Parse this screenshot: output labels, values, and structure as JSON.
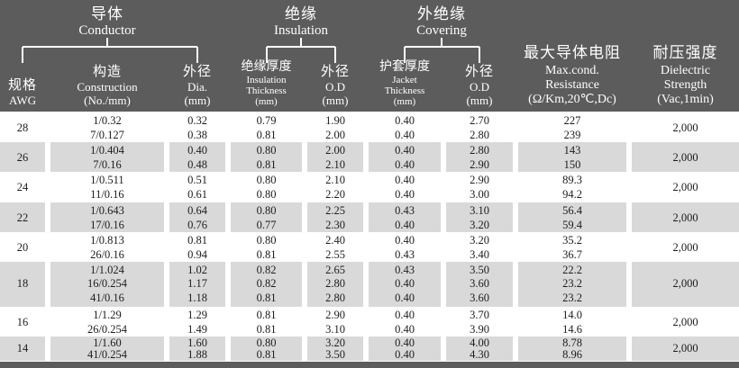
{
  "header": {
    "groups": [
      {
        "cjk": "导体",
        "en": "Conductor"
      },
      {
        "cjk": "绝缘",
        "en": "Insulation"
      },
      {
        "cjk": "外绝缘",
        "en": "Covering"
      }
    ],
    "columns": [
      {
        "key": "awg",
        "cjk": "规格",
        "lines": [
          "AWG"
        ],
        "size": ""
      },
      {
        "key": "construction",
        "cjk": "构造",
        "lines": [
          "Construction",
          "(No./mm)"
        ],
        "size": ""
      },
      {
        "key": "conductor-dia",
        "cjk": "外径",
        "lines": [
          "Dia.",
          "(mm)"
        ],
        "size": ""
      },
      {
        "key": "insulation-thickness",
        "cjk": "绝缘厚度",
        "lines": [
          "Insulation",
          "Thickness",
          "(mm)"
        ],
        "size": "small"
      },
      {
        "key": "insulation-od",
        "cjk": "外径",
        "lines": [
          "O.D",
          "(mm)"
        ],
        "size": ""
      },
      {
        "key": "jacket-thickness",
        "cjk": "护套厚度",
        "lines": [
          "Jacket",
          "Thickness",
          "(mm)"
        ],
        "size": "small"
      },
      {
        "key": "covering-od",
        "cjk": "外径",
        "lines": [
          "O.D",
          "(mm)"
        ],
        "size": ""
      },
      {
        "key": "max-resistance",
        "cjk": "最大导体电阻",
        "lines": [
          "Max.cond.",
          "Resistance",
          "(Ω/Km,20℃,Dc)"
        ],
        "size": "large"
      },
      {
        "key": "dielectric-strength",
        "cjk": "耐压强度",
        "lines": [
          "Dielectric",
          "Strength",
          "(Vac,1min)"
        ],
        "size": "large"
      }
    ]
  },
  "colors": {
    "header_bg": "#5c5c5c",
    "row_alt_bg": "#d9d9d9",
    "text": "#1c1c1c",
    "header_text": "#ffffff"
  },
  "rows": [
    {
      "cells": [
        [
          "28"
        ],
        [
          "1/0.32",
          "7/0.127"
        ],
        [
          "0.32",
          "0.38"
        ],
        [
          "0.79",
          "0.81"
        ],
        [
          "1.90",
          "2.00"
        ],
        [
          "0.40",
          "0.40"
        ],
        [
          "2.70",
          "2.80"
        ],
        [
          "227",
          "239"
        ],
        [
          "2,000"
        ]
      ]
    },
    {
      "cells": [
        [
          "26"
        ],
        [
          "1/0.404",
          "7/0.16"
        ],
        [
          "0.40",
          "0.48"
        ],
        [
          "0.80",
          "0.81"
        ],
        [
          "2.00",
          "2.10"
        ],
        [
          "0.40",
          "0.40"
        ],
        [
          "2.80",
          "2.90"
        ],
        [
          "143",
          "150"
        ],
        [
          "2,000"
        ]
      ]
    },
    {
      "cells": [
        [
          "24"
        ],
        [
          "1/0.511",
          "11/0.16"
        ],
        [
          "0.51",
          "0.61"
        ],
        [
          "0.80",
          "0.80"
        ],
        [
          "2.10",
          "2.20"
        ],
        [
          "0.40",
          "0.40"
        ],
        [
          "2.90",
          "3.00"
        ],
        [
          "89.3",
          "94.2"
        ],
        [
          "2,000"
        ]
      ]
    },
    {
      "cells": [
        [
          "22"
        ],
        [
          "1/0.643",
          "17/0.16"
        ],
        [
          "0.64",
          "0.76"
        ],
        [
          "0.80",
          "0.77"
        ],
        [
          "2.25",
          "2.30"
        ],
        [
          "0.43",
          "0.40"
        ],
        [
          "3.10",
          "3.20"
        ],
        [
          "56.4",
          "59.4"
        ],
        [
          "2,000"
        ]
      ]
    },
    {
      "cells": [
        [
          "20"
        ],
        [
          "1/0.813",
          "26/0.16"
        ],
        [
          "0.81",
          "0.94"
        ],
        [
          "0.80",
          "0.81"
        ],
        [
          "2.40",
          "2.55"
        ],
        [
          "0.40",
          "0.43"
        ],
        [
          "3.20",
          "3.40"
        ],
        [
          "35.2",
          "36.7"
        ],
        [
          "2,000"
        ]
      ]
    },
    {
      "cells": [
        [
          "18"
        ],
        [
          "1/1.024",
          "16/0.254",
          "41/0.16"
        ],
        [
          "1.02",
          "1.17",
          "1.18"
        ],
        [
          "0.82",
          "0.82",
          "0.81"
        ],
        [
          "2.65",
          "2.80",
          "2.80"
        ],
        [
          "0.43",
          "0.40",
          "0.40"
        ],
        [
          "3.50",
          "3.60",
          "3.60"
        ],
        [
          "22.2",
          "23.2",
          "23.2"
        ],
        [
          "2,000"
        ]
      ]
    },
    {
      "cells": [
        [
          "16"
        ],
        [
          "1/1.29",
          "26/0.254"
        ],
        [
          "1.29",
          "1.49"
        ],
        [
          "0.81",
          "0.81"
        ],
        [
          "2.90",
          "3.10"
        ],
        [
          "0.40",
          "0.40"
        ],
        [
          "3.70",
          "3.90"
        ],
        [
          "14.0",
          "14.6"
        ],
        [
          "2,000"
        ]
      ]
    },
    {
      "cells": [
        [
          "14"
        ],
        [
          "1/1.60",
          "41/0.254"
        ],
        [
          "1.60",
          "1.88"
        ],
        [
          "0.80",
          "0.81"
        ],
        [
          "3.20",
          "3.50"
        ],
        [
          "0.40",
          "0.40"
        ],
        [
          "4.00",
          "4.30"
        ],
        [
          "8.78",
          "8.96"
        ],
        [
          "2,000"
        ]
      ]
    }
  ]
}
